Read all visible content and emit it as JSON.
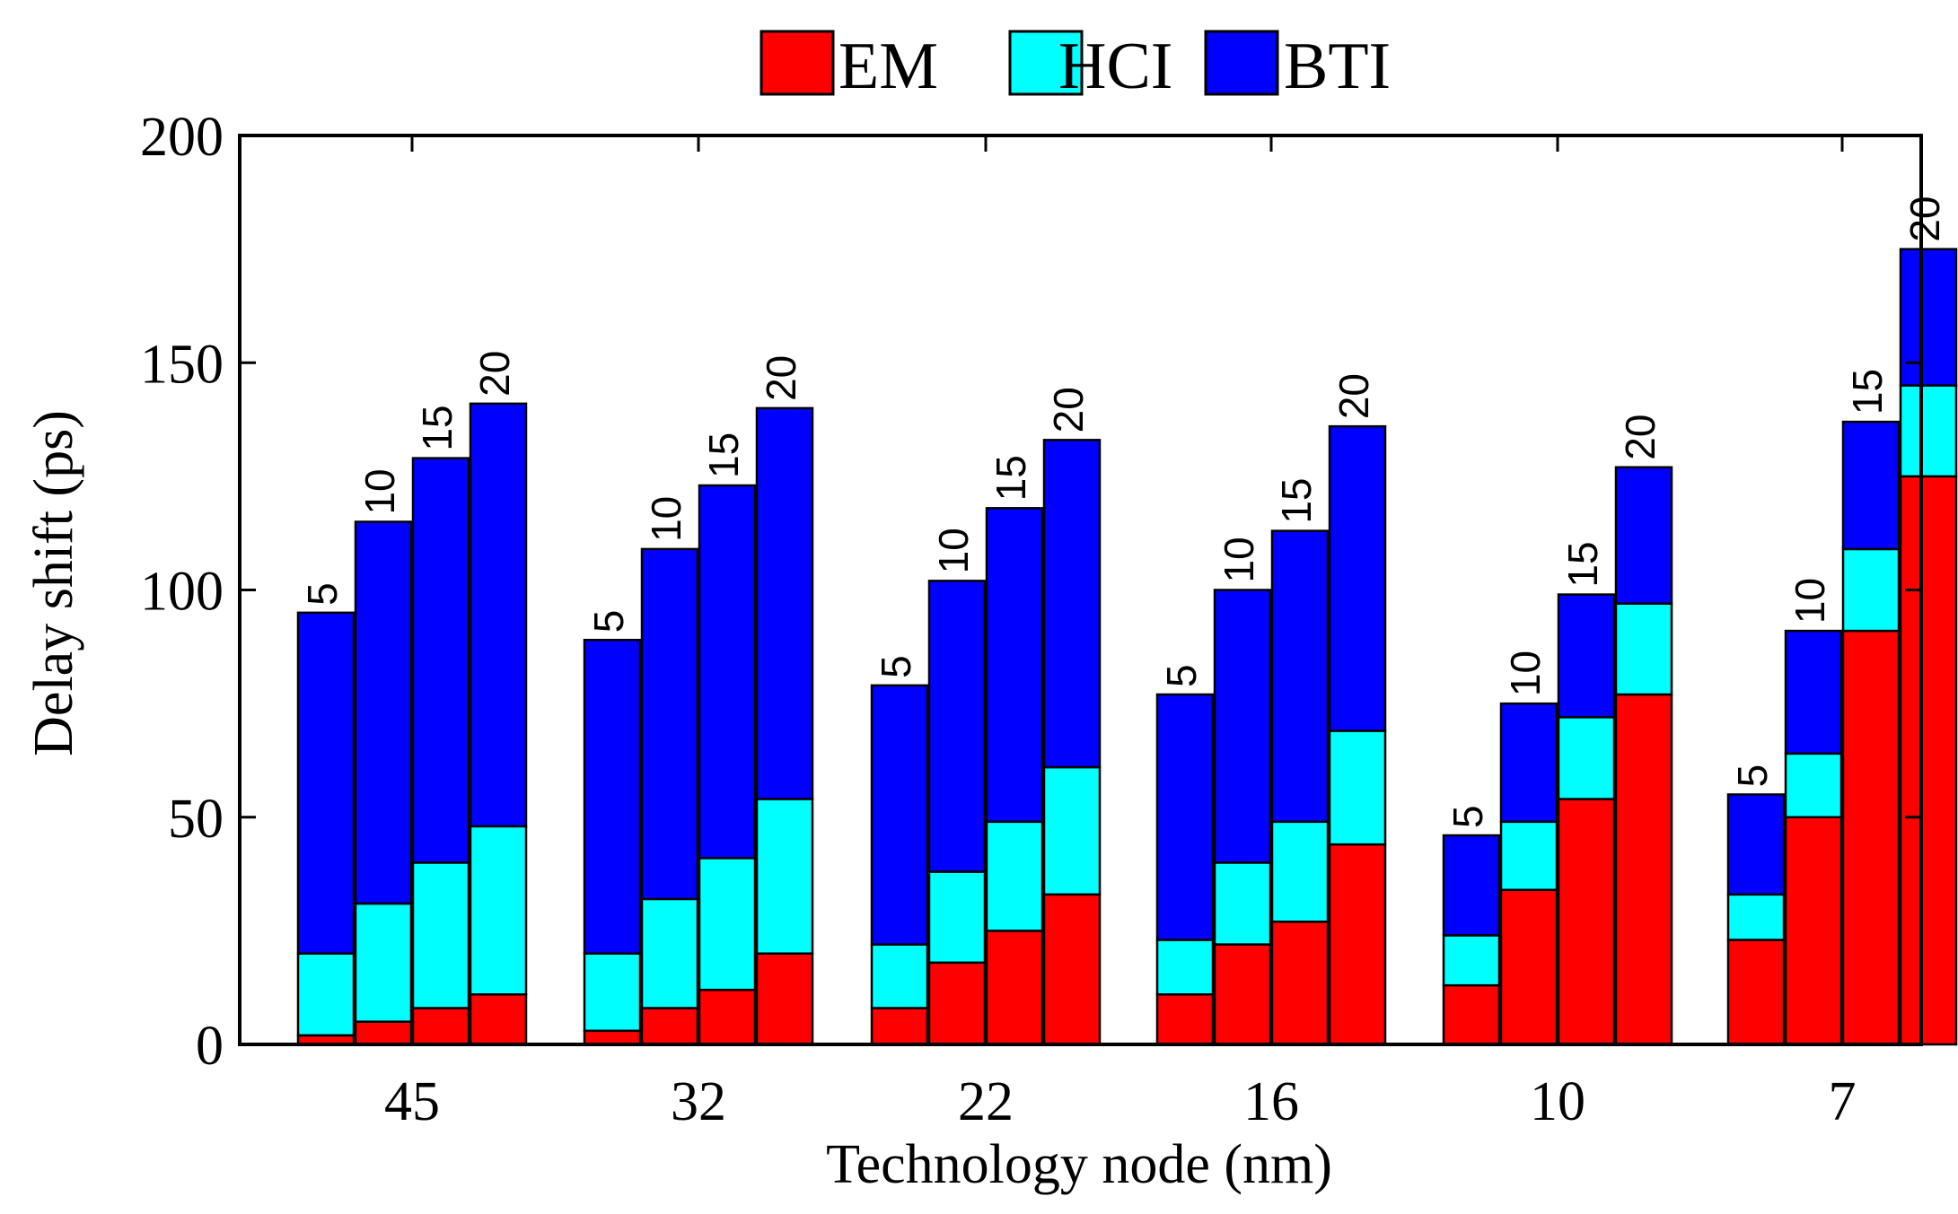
{
  "chart_data": {
    "type": "bar",
    "stacked": true,
    "title": "",
    "xlabel": "Technology node (nm)",
    "ylabel": "Delay shift (ps)",
    "ylim": [
      0,
      200
    ],
    "yticks": [
      0,
      50,
      100,
      150,
      200
    ],
    "legend_position": "top-center",
    "categories": [
      "45",
      "32",
      "22",
      "16",
      "10",
      "7"
    ],
    "sub_categories": [
      "5",
      "10",
      "15",
      "20"
    ],
    "series": [
      {
        "name": "EM",
        "color": "#ff0000",
        "values": [
          [
            2,
            5,
            8,
            11
          ],
          [
            3,
            8,
            12,
            20
          ],
          [
            8,
            18,
            25,
            33
          ],
          [
            11,
            22,
            27,
            44
          ],
          [
            13,
            34,
            54,
            77
          ],
          [
            23,
            50,
            91,
            125
          ]
        ]
      },
      {
        "name": "HCI",
        "color": "#00ffff",
        "values": [
          [
            18,
            26,
            32,
            37
          ],
          [
            17,
            24,
            29,
            34
          ],
          [
            14,
            20,
            24,
            28
          ],
          [
            12,
            18,
            22,
            25
          ],
          [
            11,
            15,
            18,
            20
          ],
          [
            10,
            14,
            18,
            20
          ]
        ]
      },
      {
        "name": "BTI",
        "color": "#0000ff",
        "values": [
          [
            75,
            84,
            89,
            93
          ],
          [
            69,
            77,
            82,
            86
          ],
          [
            57,
            64,
            69,
            72
          ],
          [
            54,
            60,
            64,
            67
          ],
          [
            22,
            26,
            27,
            30
          ],
          [
            22,
            27,
            28,
            30
          ]
        ]
      }
    ]
  }
}
